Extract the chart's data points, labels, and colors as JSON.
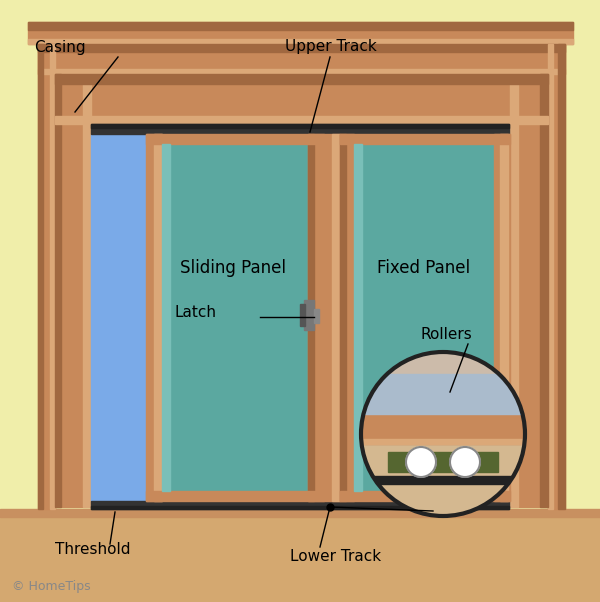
{
  "bg_color": "#f0eeaa",
  "floor_color": "#d4a870",
  "floor_edge_color": "#c89060",
  "casing_color": "#c8895a",
  "casing_dark": "#a06840",
  "casing_light": "#dba878",
  "glass_teal": "#5ba8a0",
  "glass_teal_light": "#7abfb8",
  "glass_blue": "#7aaae8",
  "track_color": "#333333",
  "track_dark": "#222222",
  "roller_housing": "#556630",
  "roller_white": "#ffffff",
  "handle_color": "#555555",
  "circle_bg": "#ccbbaa",
  "labels": {
    "casing": "Casing",
    "upper_track": "Upper Track",
    "sliding_panel": "Sliding Panel",
    "fixed_panel": "Fixed Panel",
    "latch": "Latch",
    "rollers": "Rollers",
    "threshold": "Threshold",
    "lower_track": "Lower Track"
  },
  "copyright": "© HomeTips",
  "label_fontsize": 11,
  "panel_label_fontsize": 12
}
